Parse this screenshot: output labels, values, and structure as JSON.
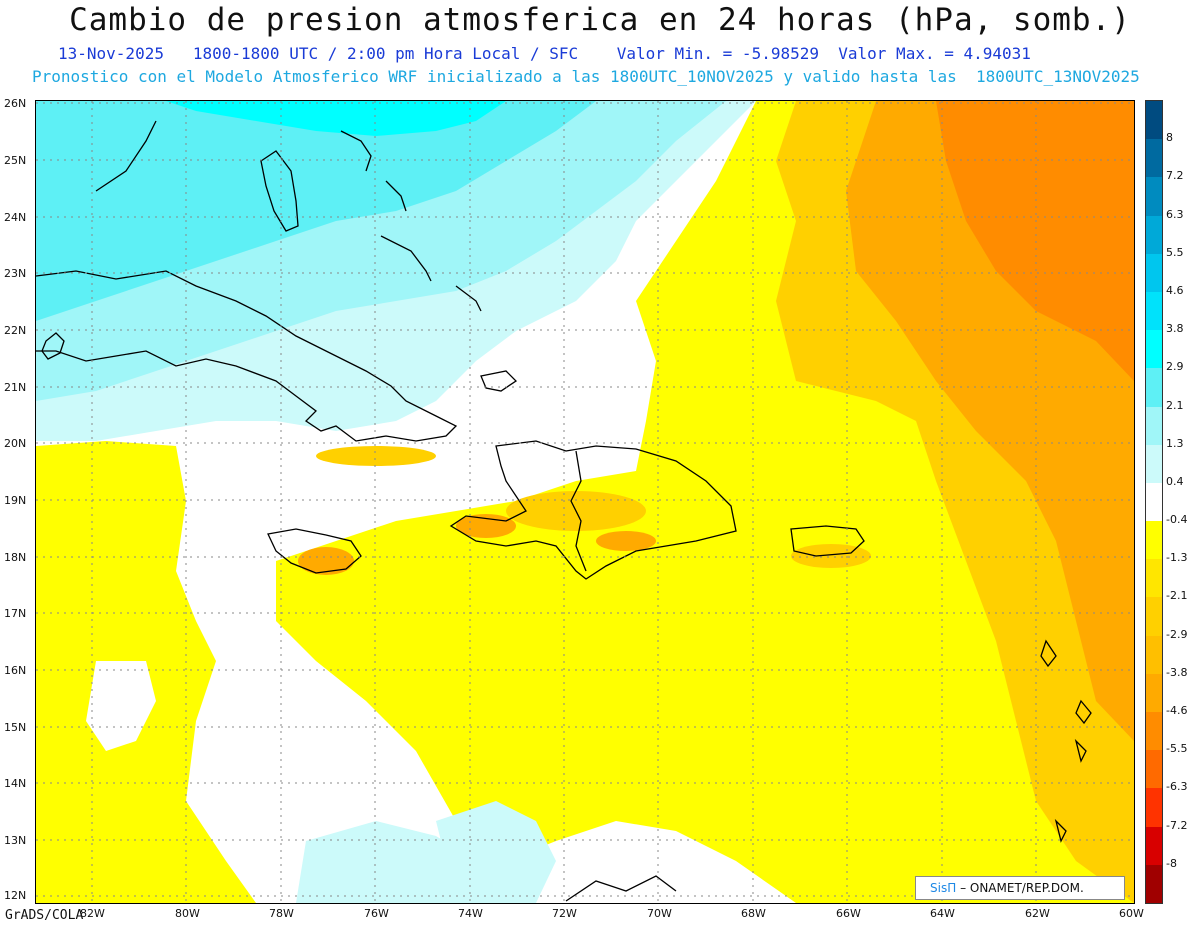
{
  "header": {
    "title": "Cambio de presion atmosferica en 24 horas (hPa, somb.)",
    "subtitle_line1": "13-Nov-2025   1800-1800 UTC / 2:00 pm Hora Local / SFC    Valor Min. = -5.98529  Valor Max. = 4.94031",
    "subtitle_line2": "Pronostico con el Modelo Atmosferico WRF inicializado a las 1800UTC_10NOV2025 y valido hasta las  1800UTC_13NOV2025"
  },
  "map": {
    "lat_ticks": [
      "26N",
      "25N",
      "24N",
      "23N",
      "22N",
      "21N",
      "20N",
      "19N",
      "18N",
      "17N",
      "16N",
      "15N",
      "14N",
      "13N",
      "12N"
    ],
    "lon_ticks": [
      "82W",
      "80W",
      "78W",
      "76W",
      "74W",
      "72W",
      "70W",
      "68W",
      "66W",
      "64W",
      "62W",
      "60W"
    ],
    "colors": {
      "deep_cyan": "#00ffff",
      "cyan": "#5ef0f5",
      "light_cyan": "#a0f6f8",
      "pale_cyan": "#ccfafa",
      "neutral": "#ffffff",
      "yellow": "#ffff00",
      "light_orange": "#ffd000",
      "orange": "#ffaa00",
      "dark_orange": "#ff8c00"
    }
  },
  "colorbar": {
    "labels": [
      "8",
      "7.2",
      "6.3",
      "5.5",
      "4.6",
      "3.8",
      "2.9",
      "2.1",
      "1.3",
      "0.4",
      "-0.4",
      "-1.3",
      "-2.1",
      "-2.9",
      "-3.8",
      "-4.6",
      "-5.5",
      "-6.3",
      "-7.2",
      "-8"
    ],
    "segment_colors": [
      "#004b80",
      "#006aa0",
      "#008bbf",
      "#00a9d8",
      "#00c6ee",
      "#00e2fb",
      "#00ffff",
      "#5ef0f5",
      "#a0f6f8",
      "#ccfafa",
      "#ffffff",
      "#ffff00",
      "#ffe600",
      "#ffd000",
      "#ffbf00",
      "#ffaa00",
      "#ff8c00",
      "#ff6a00",
      "#ff3300",
      "#d80000",
      "#a00000"
    ]
  },
  "credit": {
    "brand": "SisΠ",
    "text": "– ONAMET/REP.DOM."
  },
  "footer": {
    "software": "GrADS/COLA"
  }
}
